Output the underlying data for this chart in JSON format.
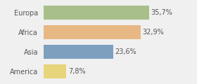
{
  "categories": [
    "Europa",
    "Africa",
    "Asia",
    "America"
  ],
  "values": [
    35.7,
    32.9,
    23.6,
    7.8
  ],
  "labels": [
    "35,7%",
    "32,9%",
    "23,6%",
    "7,8%"
  ],
  "bar_colors": [
    "#a8bf8a",
    "#e8b884",
    "#7f9fbf",
    "#e8d47a"
  ],
  "background_color": "#f0f0f0",
  "xlim": [
    0,
    44
  ],
  "bar_height": 0.72,
  "label_fontsize": 7.0,
  "category_fontsize": 7.0,
  "figsize": [
    2.8,
    1.2
  ],
  "dpi": 100
}
